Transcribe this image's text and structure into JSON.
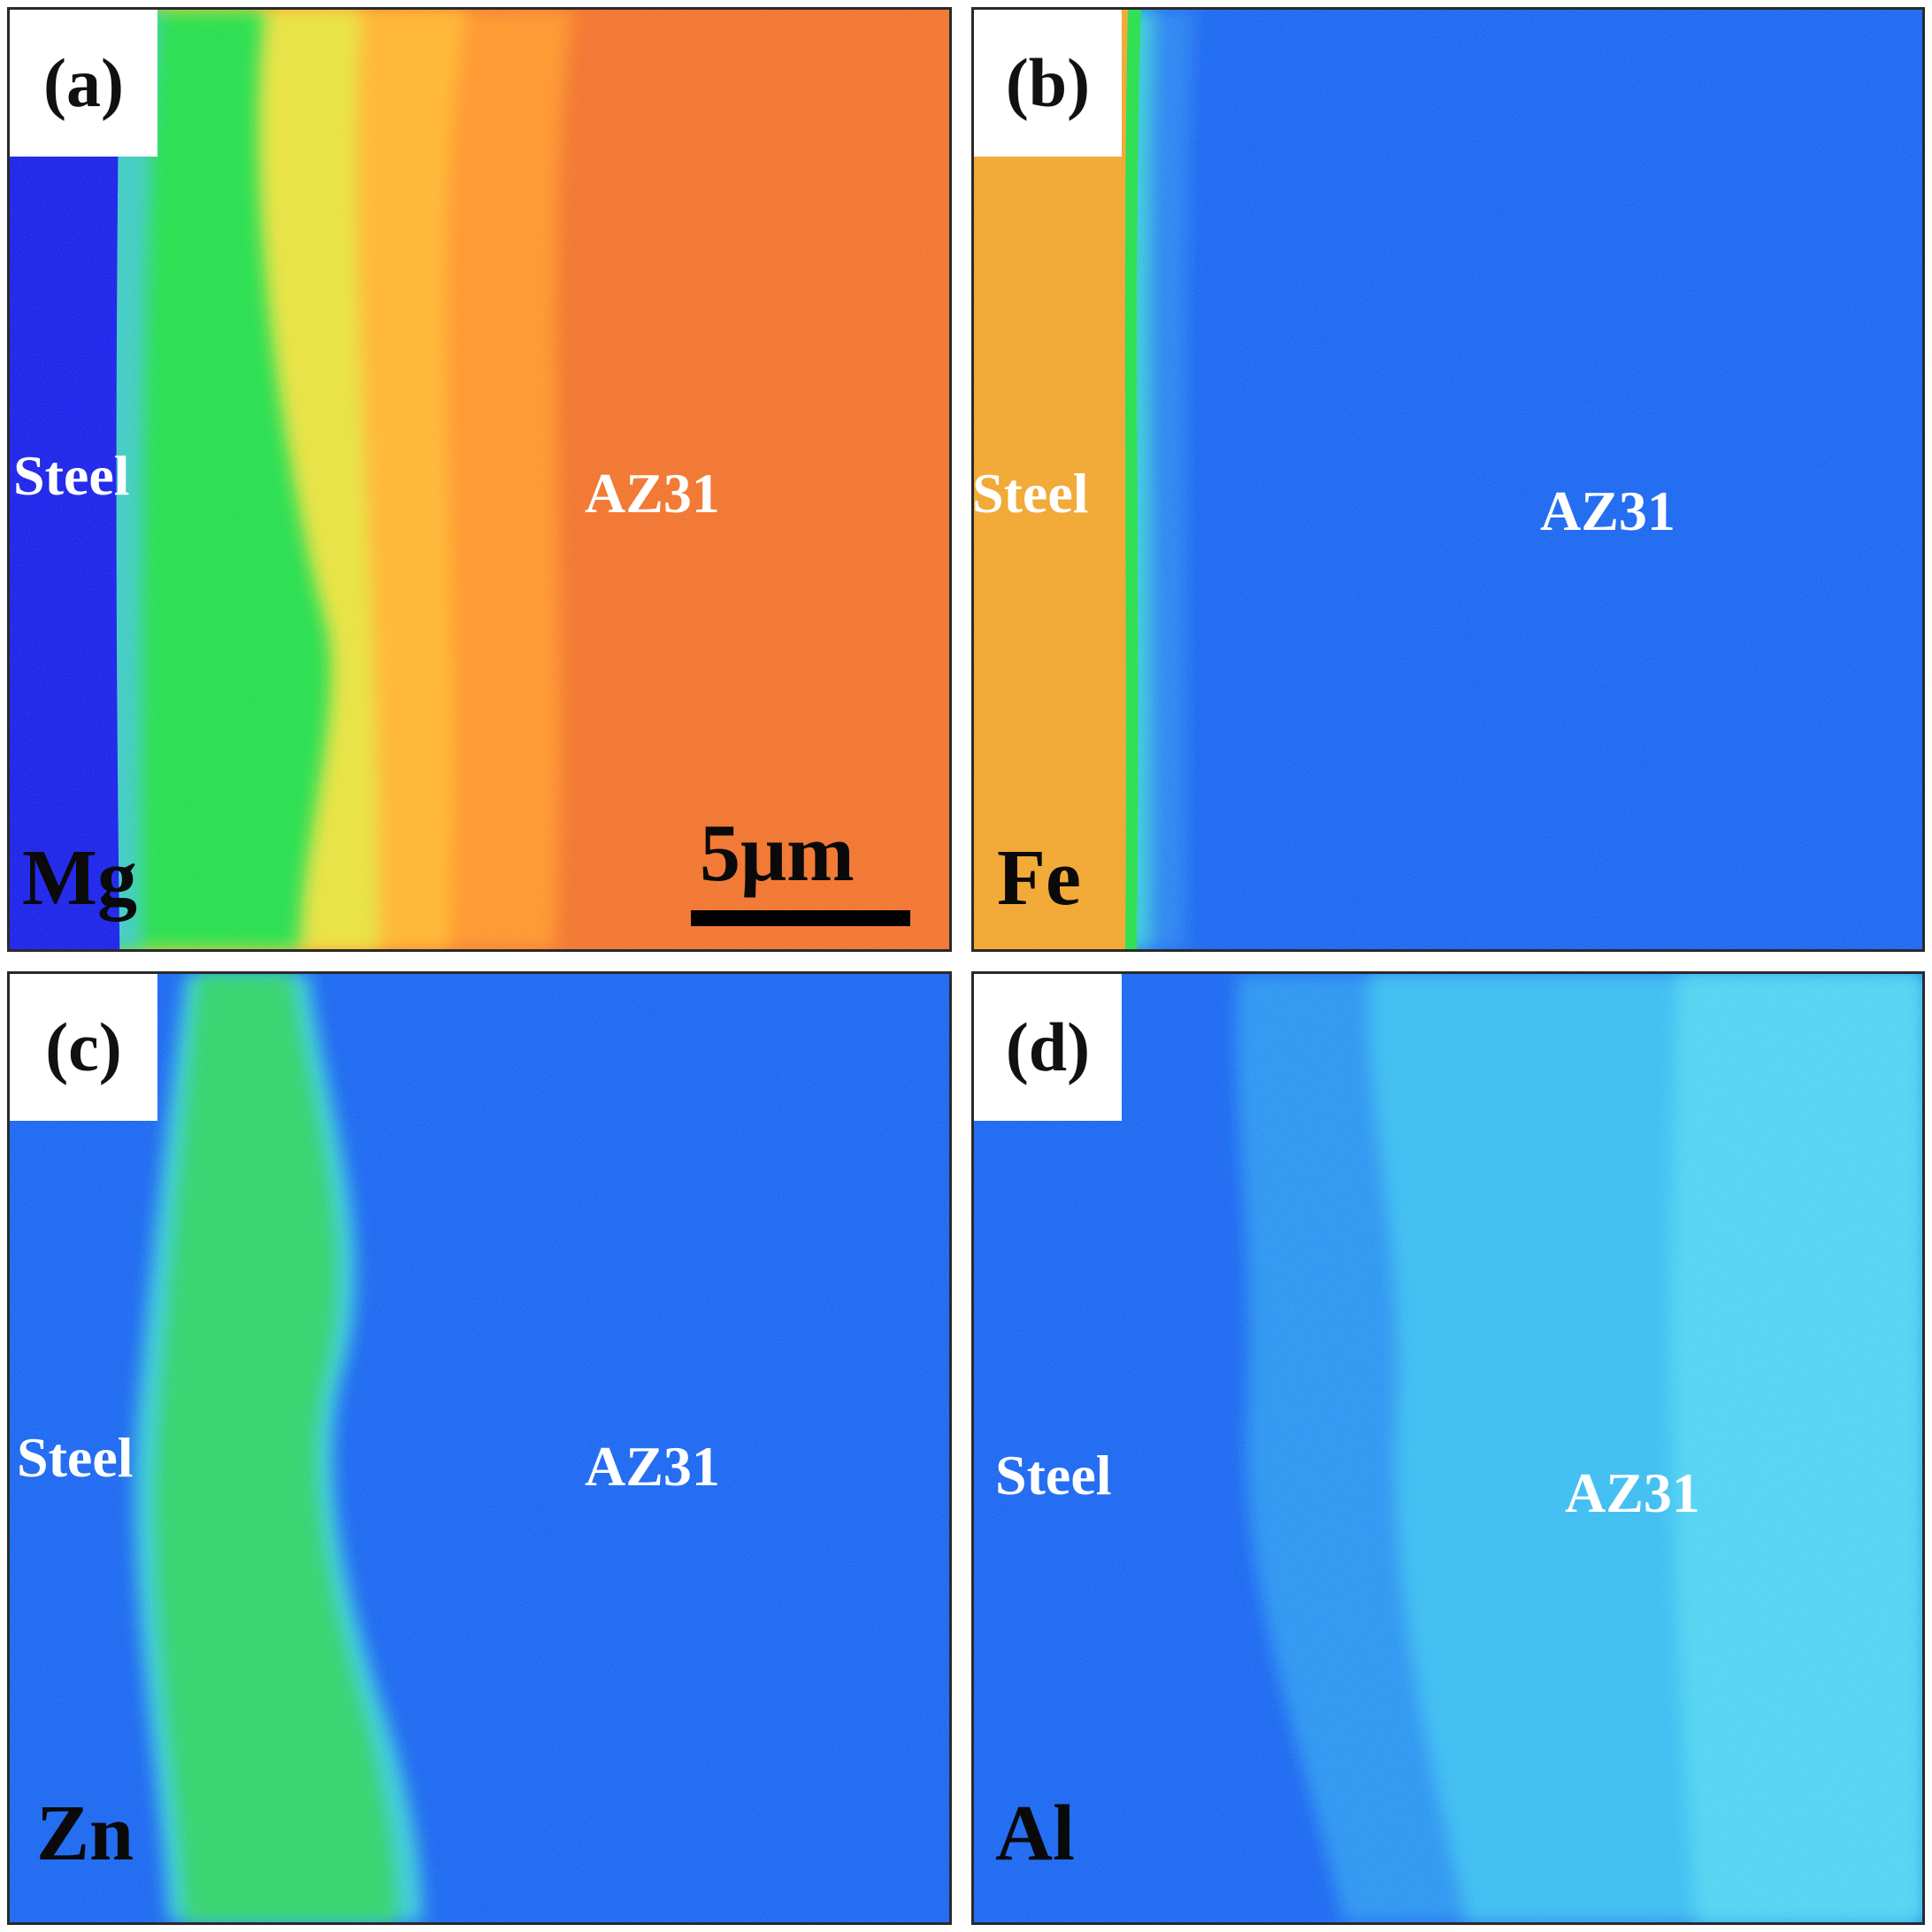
{
  "panels": [
    {
      "letter": "(a)",
      "element": "Mg",
      "left_label": "Steel",
      "right_label": "AZ31",
      "scale": "5μm"
    },
    {
      "letter": "(b)",
      "element": "Fe",
      "left_label": "Steel",
      "right_label": "AZ31"
    },
    {
      "letter": "(c)",
      "element": "Zn",
      "left_label": "Steel",
      "right_label": "AZ31"
    },
    {
      "letter": "(d)",
      "element": "Al",
      "left_label": "Steel",
      "right_label": "AZ31"
    }
  ],
  "colors": {
    "deep_blue": "#0a12e8",
    "blue": "#0a5cf0",
    "cyan": "#2ec8d8",
    "green": "#18dc40",
    "yellow": "#e6e830",
    "orange": "#ff8a18",
    "red_orange": "#f55c1c"
  }
}
